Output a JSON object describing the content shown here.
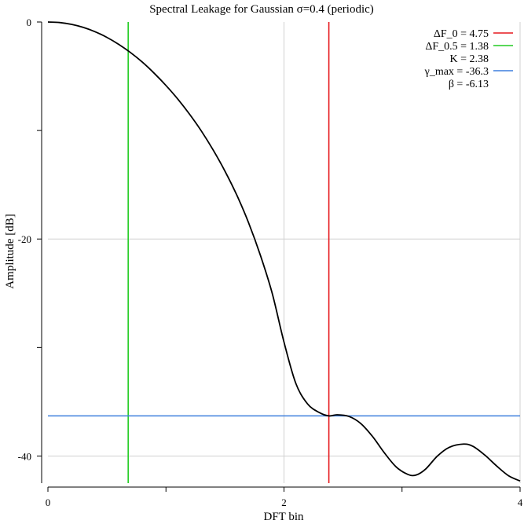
{
  "chart_data": {
    "type": "line",
    "title": "Spectral Leakage for Gaussian σ=0.4 (periodic)",
    "xlabel": "DFT bin",
    "ylabel": "Amplitude [dB]",
    "xlim": [
      0,
      4
    ],
    "ylim": [
      -42.5,
      0
    ],
    "grid": true,
    "legend_position": "top-right",
    "x_ticks": [
      {
        "value": 0,
        "label": "0"
      },
      {
        "value": 1,
        "label": ""
      },
      {
        "value": 2,
        "label": "2"
      },
      {
        "value": 3,
        "label": ""
      },
      {
        "value": 4,
        "label": "4"
      }
    ],
    "y_ticks": [
      {
        "value": 0,
        "label": "0"
      },
      {
        "value": -10,
        "label": ""
      },
      {
        "value": -20,
        "label": "-20"
      },
      {
        "value": -30,
        "label": ""
      },
      {
        "value": -40,
        "label": "-40"
      }
    ],
    "series": [
      {
        "color": "#000000",
        "x": [
          0,
          0.1,
          0.2,
          0.3,
          0.4,
          0.5,
          0.6,
          0.7,
          0.8,
          0.9,
          1.0,
          1.1,
          1.2,
          1.3,
          1.4,
          1.5,
          1.6,
          1.7,
          1.8,
          1.9,
          2.0,
          2.1,
          2.2,
          2.3,
          2.38,
          2.45,
          2.55,
          2.65,
          2.75,
          2.85,
          2.95,
          3.05,
          3.12,
          3.2,
          3.3,
          3.4,
          3.52,
          3.6,
          3.7,
          3.8,
          3.9,
          4.0
        ],
        "y": [
          0,
          -0.05,
          -0.22,
          -0.5,
          -0.9,
          -1.42,
          -2.06,
          -2.82,
          -3.7,
          -4.72,
          -5.85,
          -7.1,
          -8.5,
          -10.05,
          -11.8,
          -13.75,
          -15.95,
          -18.5,
          -21.5,
          -25.0,
          -29.5,
          -33.3,
          -35.2,
          -36.0,
          -36.3,
          -36.2,
          -36.35,
          -37.0,
          -38.2,
          -39.7,
          -41.0,
          -41.7,
          -41.75,
          -41.2,
          -40.0,
          -39.2,
          -38.9,
          -39.1,
          -39.9,
          -40.9,
          -41.8,
          -42.3
        ]
      }
    ],
    "vlines": [
      {
        "x": 2.38,
        "color": "#e6191e"
      },
      {
        "x": 0.68,
        "color": "#22cc22"
      }
    ],
    "hlines": [
      {
        "y": -36.3,
        "color": "#3d7fde"
      }
    ],
    "legend": [
      {
        "label": "ΔF_0 = 4.75",
        "color": "#e6191e",
        "line": true
      },
      {
        "label": "ΔF_0.5 = 1.38",
        "color": "#22cc22",
        "line": true
      },
      {
        "label": "K = 2.38",
        "color": null,
        "line": false
      },
      {
        "label": "γ_max = -36.3",
        "color": "#3d7fde",
        "line": true
      },
      {
        "label": "β = -6.13",
        "color": null,
        "line": false
      }
    ]
  }
}
